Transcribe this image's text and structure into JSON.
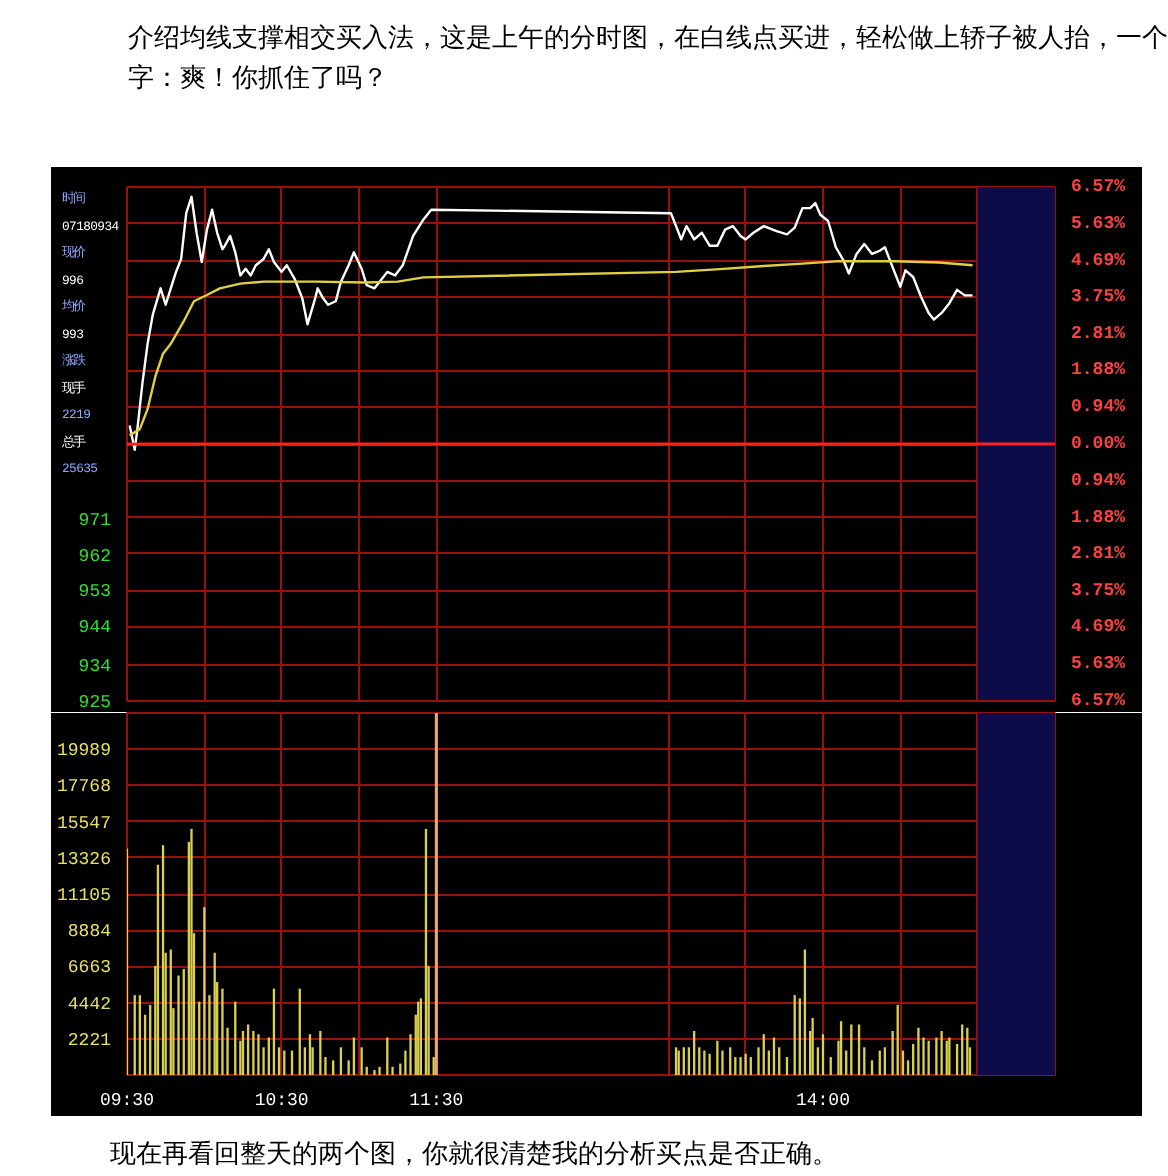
{
  "chart_data": [
    {
      "type": "line",
      "title": "介绍均线支撑相交买入法，这是上午的分时图，在白线点买进，轻松做上轿子被人抬，一个字：爽！你抓住了吗？",
      "xlim": [
        9.5,
        15.5
      ],
      "xticks": [
        {
          "value": 9.5,
          "label": null
        },
        {
          "value": 10,
          "label": null
        },
        {
          "value": 10.5,
          "label": null
        },
        {
          "value": 11,
          "label": null
        },
        {
          "value": 11.5,
          "label": null
        },
        {
          "value": 13,
          "label": null
        },
        {
          "value": 13.5,
          "label": null
        },
        {
          "value": 14,
          "label": null
        },
        {
          "value": 14.5,
          "label": null
        },
        {
          "value": 15,
          "label": null
        }
      ],
      "ylim": [
        -6.57,
        6.57
      ],
      "yticks": [
        {
          "value": 6.57,
          "label": "6.57%"
        },
        {
          "value": 5.63,
          "label": "5.63%"
        },
        {
          "value": 4.69,
          "label": "4.69%"
        },
        {
          "value": 3.75,
          "label": "3.75%"
        },
        {
          "value": 2.81,
          "label": "2.81%"
        },
        {
          "value": 1.88,
          "label": "1.88%"
        },
        {
          "value": 0.94,
          "label": "0.94%"
        },
        {
          "value": 0,
          "label": "0.00%"
        },
        {
          "value": -0.94,
          "label": "0.94%"
        },
        {
          "value": -1.88,
          "label": "1.88%"
        },
        {
          "value": -2.81,
          "label": "2.81%"
        },
        {
          "value": -3.75,
          "label": "3.75%"
        },
        {
          "value": -4.69,
          "label": "4.69%"
        },
        {
          "value": -5.63,
          "label": "5.63%"
        },
        {
          "value": -6.57,
          "label": "6.57%"
        }
      ],
      "y2lim": [
        925,
        1055
      ],
      "y2ticks": [
        971,
        962,
        953,
        944,
        934,
        925
      ],
      "tick_labels": "y",
      "grid": true,
      "line_style": "solid",
      "ref_lines": [
        {
          "axis": "y",
          "value": 0,
          "label": null,
          "color": "#ff2020"
        }
      ],
      "bands": [
        {
          "axis": "x",
          "from": 15,
          "to": 15.5,
          "label": null,
          "color": "#0c0c48"
        }
      ],
      "annotations": [
        "时间",
        "07180934",
        "现价",
        "996",
        "均价",
        "993",
        "涨跌",
        "现手",
        "2219",
        "总手",
        "25635"
      ],
      "series": [
        {
          "color": "#ffffff",
          "x": [
            9.517,
            9.55,
            9.567,
            9.6,
            9.633,
            9.667,
            9.717,
            9.75,
            9.783,
            9.817,
            9.85,
            9.883,
            9.917,
            9.95,
            9.983,
            10.017,
            10.05,
            10.083,
            10.117,
            10.133,
            10.167,
            10.2,
            10.233,
            10.267,
            10.3,
            10.333,
            10.383,
            10.417,
            10.45,
            10.5,
            10.533,
            10.583,
            10.633,
            10.667,
            10.717,
            10.733,
            10.767,
            10.8,
            10.85,
            10.883,
            10.933,
            10.967,
            11.017,
            11.05,
            11.1,
            11.15,
            11.183,
            11.233,
            11.283,
            11.35,
            11.417,
            11.467,
            13.017,
            13.05,
            13.083,
            13.117,
            13.167,
            13.217,
            13.267,
            13.317,
            13.367,
            13.417,
            13.467,
            13.5,
            13.55,
            13.617,
            13.7,
            13.767,
            13.817,
            13.867,
            13.917,
            13.95,
            13.983,
            14.033,
            14.083,
            14.133,
            14.167,
            14.217,
            14.267,
            14.317,
            14.367,
            14.4,
            14.45,
            14.5,
            14.533,
            14.583,
            14.633,
            14.683,
            14.717,
            14.767,
            14.817,
            14.867,
            14.917,
            14.967
          ],
          "values": [
            0.47,
            -0.15,
            0.38,
            1.56,
            2.56,
            3.31,
            3.98,
            3.56,
            3.98,
            4.4,
            4.73,
            5.9,
            6.32,
            5.4,
            4.65,
            5.48,
            5.99,
            5.4,
            4.98,
            5.07,
            5.32,
            4.9,
            4.31,
            4.48,
            4.31,
            4.57,
            4.73,
            4.98,
            4.65,
            4.4,
            4.57,
            4.23,
            3.73,
            3.06,
            3.73,
            3.98,
            3.73,
            3.56,
            3.65,
            4.15,
            4.57,
            4.9,
            4.48,
            4.06,
            3.98,
            4.23,
            4.4,
            4.31,
            4.57,
            5.32,
            5.74,
            5.99,
            5.9,
            5.57,
            5.23,
            5.57,
            5.23,
            5.4,
            5.07,
            5.07,
            5.48,
            5.57,
            5.32,
            5.23,
            5.4,
            5.57,
            5.44,
            5.36,
            5.53,
            6.03,
            6.03,
            6.16,
            5.86,
            5.7,
            5.03,
            4.69,
            4.36,
            4.86,
            5.11,
            4.86,
            4.94,
            5.03,
            4.52,
            4.02,
            4.44,
            4.27,
            3.77,
            3.35,
            3.18,
            3.35,
            3.6,
            3.94,
            3.8,
            3.8
          ]
        },
        {
          "color": "#e0d040",
          "x": [
            9.517,
            9.583,
            9.633,
            9.683,
            9.733,
            9.783,
            9.867,
            9.933,
            10.017,
            10.1,
            10.233,
            10.383,
            10.717,
            11.033,
            11.25,
            11.417,
            13.05,
            13.333,
            13.617,
            13.867,
            14.083,
            14.467,
            14.75,
            14.967
          ],
          "values": [
            0.22,
            0.38,
            0.89,
            1.72,
            2.31,
            2.56,
            3.14,
            3.65,
            3.81,
            3.98,
            4.1,
            4.15,
            4.15,
            4.13,
            4.15,
            4.26,
            4.4,
            4.47,
            4.55,
            4.61,
            4.67,
            4.67,
            4.64,
            4.57
          ]
        }
      ]
    },
    {
      "type": "bar",
      "color": "#d8d050",
      "xlim": [
        9.5,
        15.5
      ],
      "xticks": [
        {
          "value": 9.5,
          "label": "09:30"
        },
        {
          "value": 10,
          "label": null
        },
        {
          "value": 10.5,
          "label": "10:30"
        },
        {
          "value": 11,
          "label": null
        },
        {
          "value": 11.5,
          "label": "11:30"
        },
        {
          "value": 13,
          "label": null
        },
        {
          "value": 13.5,
          "label": null
        },
        {
          "value": 14,
          "label": "14:00"
        },
        {
          "value": 14.5,
          "label": null
        },
        {
          "value": 15,
          "label": null
        }
      ],
      "ylim": [
        0,
        22210
      ],
      "yticks": [
        2221,
        4442,
        6663,
        8884,
        11105,
        13326,
        15547,
        17768,
        19989
      ],
      "grid": true,
      "ref_lines": [
        {
          "axis": "x",
          "value": 11.5,
          "label": null,
          "color": "#e8a878"
        }
      ],
      "bands": [
        {
          "axis": "x",
          "from": 15,
          "to": 15.5,
          "label": null,
          "color": "#0c0c48"
        }
      ],
      "annotations": [
        "现在再看回整天的两个图，你就很清楚我的分析买点是否正确。"
      ],
      "x": [
        9.5,
        9.55,
        9.583,
        9.617,
        9.65,
        9.683,
        9.7,
        9.733,
        9.75,
        9.783,
        9.8,
        9.833,
        9.867,
        9.9,
        9.917,
        9.933,
        9.967,
        10,
        10.033,
        10.067,
        10.083,
        10.117,
        10.15,
        10.2,
        10.233,
        10.25,
        10.283,
        10.317,
        10.35,
        10.383,
        10.417,
        10.45,
        10.483,
        10.517,
        10.567,
        10.617,
        10.65,
        10.683,
        10.7,
        10.75,
        10.783,
        10.833,
        10.883,
        10.933,
        10.967,
        11.017,
        11.05,
        11.1,
        11.133,
        11.183,
        11.217,
        11.267,
        11.3,
        11.333,
        11.367,
        11.383,
        11.4,
        11.433,
        11.45,
        11.483,
        13.05,
        13.067,
        13.1,
        13.133,
        13.167,
        13.2,
        13.233,
        13.267,
        13.317,
        13.35,
        13.4,
        13.433,
        13.467,
        13.5,
        13.533,
        13.583,
        13.617,
        13.65,
        13.683,
        13.717,
        13.767,
        13.817,
        13.85,
        13.883,
        13.917,
        13.933,
        13.967,
        14,
        14.05,
        14.1,
        14.117,
        14.15,
        14.183,
        14.233,
        14.267,
        14.317,
        14.367,
        14.4,
        14.45,
        14.483,
        14.517,
        14.55,
        14.583,
        14.617,
        14.65,
        14.683,
        14.733,
        14.767,
        14.8,
        14.817,
        14.867,
        14.9,
        14.933,
        14.95
      ],
      "values": [
        13900,
        4900,
        4900,
        3700,
        4300,
        6700,
        12900,
        14100,
        7500,
        7700,
        4100,
        6100,
        6500,
        14300,
        15100,
        8700,
        4500,
        10300,
        4900,
        7500,
        5700,
        5300,
        2900,
        4500,
        2100,
        2700,
        3100,
        2700,
        2500,
        1700,
        2300,
        5300,
        1700,
        1500,
        1500,
        5300,
        1700,
        2500,
        1700,
        2700,
        1100,
        900,
        1700,
        900,
        2300,
        1700,
        500,
        300,
        500,
        2300,
        500,
        700,
        1500,
        2500,
        3700,
        4500,
        4700,
        15100,
        6700,
        1100,
        1700,
        1500,
        1700,
        1700,
        2700,
        1700,
        1500,
        1300,
        2100,
        1500,
        1700,
        1100,
        1100,
        1300,
        1100,
        1700,
        2500,
        1500,
        2300,
        1700,
        1100,
        4900,
        4700,
        7700,
        2700,
        3500,
        1700,
        2500,
        1100,
        2100,
        3300,
        1500,
        3100,
        3100,
        1700,
        900,
        1500,
        1700,
        2700,
        4300,
        1500,
        900,
        1900,
        2900,
        2300,
        2100,
        2300,
        2700,
        2100,
        2300,
        1900,
        3100,
        2900,
        1700
      ]
    }
  ]
}
